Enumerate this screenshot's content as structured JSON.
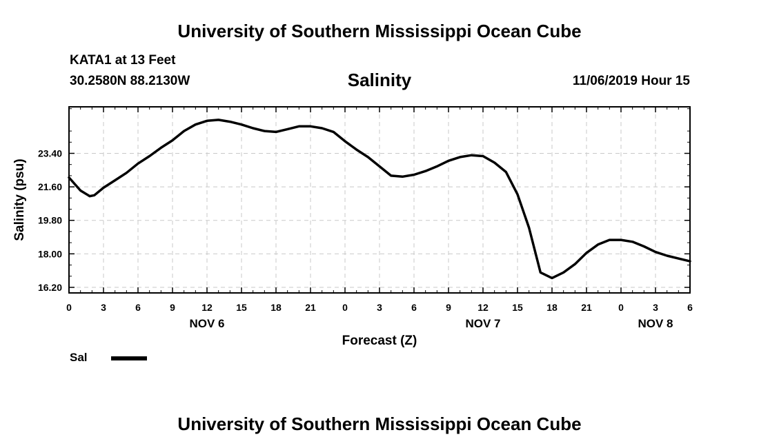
{
  "header": {
    "title_top": "University of Southern Mississippi Ocean Cube",
    "title_bottom": "University of Southern Mississippi Ocean Cube",
    "station": "KATA1 at 13 Feet",
    "coordinates": "30.2580N 88.2130W",
    "chart_title": "Salinity",
    "timestamp": "11/06/2019 Hour 15"
  },
  "legend": {
    "label": "Sal",
    "color": "#000000"
  },
  "chart_data": {
    "type": "line",
    "title": "Salinity",
    "xlabel": "Forecast (Z)",
    "ylabel": "Salinity (psu)",
    "x_unit_note": "hours",
    "xlim": [
      0,
      54
    ],
    "ylim": [
      15.9,
      25.9
    ],
    "y_ticks": [
      16.2,
      18.0,
      19.8,
      21.6,
      23.4
    ],
    "y_tick_labels": [
      "16.20",
      "18.00",
      "19.80",
      "21.60",
      "23.40"
    ],
    "x_ticks": [
      0,
      3,
      6,
      9,
      12,
      15,
      18,
      21,
      24,
      27,
      30,
      33,
      36,
      39,
      42,
      45,
      48,
      51,
      54
    ],
    "x_tick_labels": [
      "0",
      "3",
      "6",
      "9",
      "12",
      "15",
      "18",
      "21",
      "0",
      "3",
      "6",
      "9",
      "12",
      "15",
      "18",
      "21",
      "0",
      "3",
      "6"
    ],
    "day_labels": [
      {
        "label": "NOV 6",
        "x": 12
      },
      {
        "label": "NOV 7",
        "x": 36
      },
      {
        "label": "NOV 8",
        "x": 51
      }
    ],
    "grid": true,
    "series": [
      {
        "name": "Sal",
        "color": "#000000",
        "x": [
          0,
          1,
          1.8,
          2.2,
          3,
          4,
          5,
          6,
          7,
          8,
          9,
          10,
          11,
          12,
          13,
          14,
          15,
          16,
          17,
          18,
          19,
          20,
          21,
          22,
          23,
          24,
          25,
          26,
          27,
          28,
          29,
          30,
          31,
          32,
          33,
          34,
          35,
          36,
          37,
          38,
          39,
          40,
          41,
          42,
          43,
          44,
          45,
          46,
          47,
          48,
          49,
          50,
          51,
          52,
          53,
          54
        ],
        "y": [
          22.1,
          21.4,
          21.1,
          21.15,
          21.55,
          21.95,
          22.35,
          22.85,
          23.25,
          23.7,
          24.1,
          24.6,
          24.95,
          25.15,
          25.2,
          25.1,
          24.95,
          24.75,
          24.6,
          24.55,
          24.7,
          24.85,
          24.85,
          24.75,
          24.55,
          24.05,
          23.6,
          23.2,
          22.7,
          22.2,
          22.15,
          22.25,
          22.45,
          22.7,
          23.0,
          23.2,
          23.3,
          23.25,
          22.9,
          22.4,
          21.2,
          19.4,
          17.0,
          16.7,
          17.0,
          17.45,
          18.05,
          18.5,
          18.75,
          18.75,
          18.65,
          18.4,
          18.1,
          17.9,
          17.75,
          17.6
        ]
      }
    ]
  }
}
